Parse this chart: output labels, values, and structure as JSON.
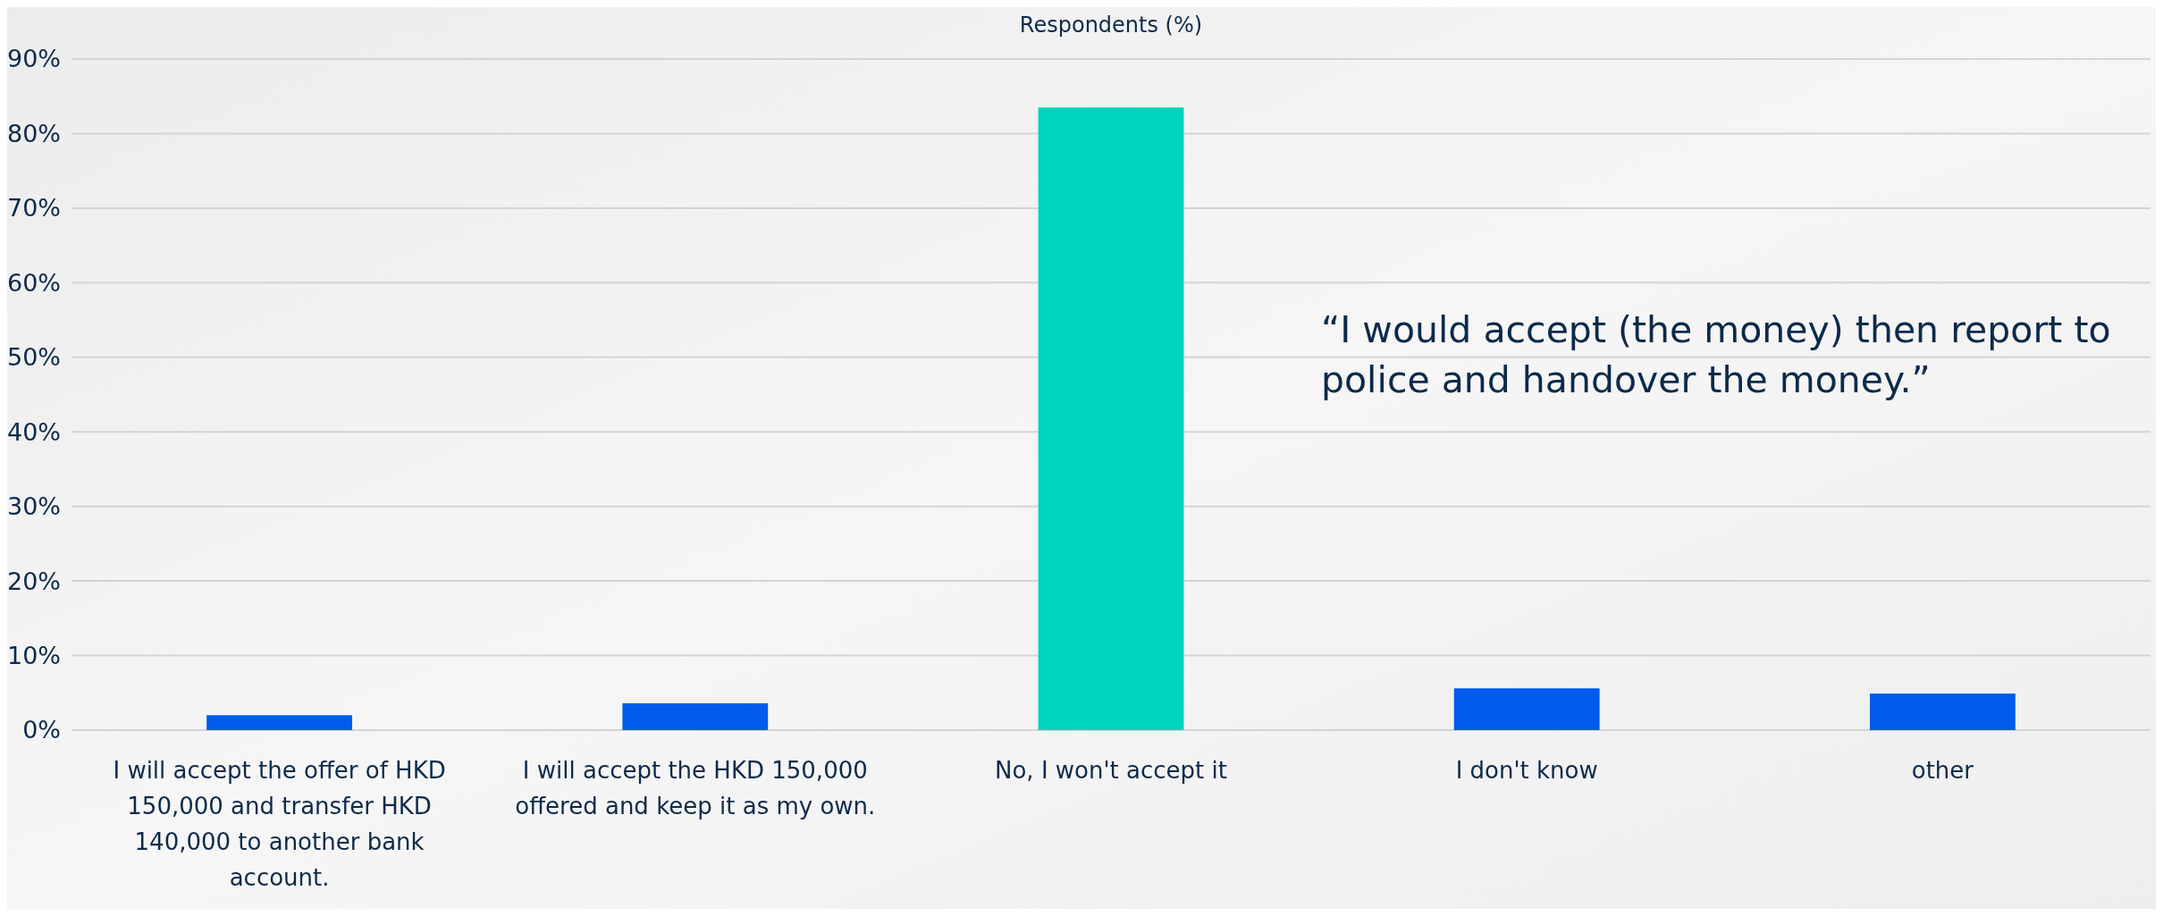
{
  "chart_data": {
    "type": "bar",
    "title": "Respondents (%)",
    "categories": [
      "I will accept the offer of HKD 150,000 and transfer HKD 140,000 to another bank account.",
      "I will accept the HKD 150,000 offered and keep it as my own.",
      "No, I won't accept it",
      "I don't know",
      "other"
    ],
    "values": [
      2.0,
      3.6,
      83.5,
      5.6,
      4.9
    ],
    "colors": [
      "#005aeb",
      "#005aeb",
      "#00d4bc",
      "#005aeb",
      "#005aeb"
    ],
    "ylim": [
      0,
      90
    ],
    "yticks": [
      {
        "value": 0,
        "label": "0%"
      },
      {
        "value": 10,
        "label": "10%"
      },
      {
        "value": 20,
        "label": "20%"
      },
      {
        "value": 30,
        "label": "30%"
      },
      {
        "value": 40,
        "label": "40%"
      },
      {
        "value": 50,
        "label": "50%"
      },
      {
        "value": 60,
        "label": "60%"
      },
      {
        "value": 70,
        "label": "70%"
      },
      {
        "value": 80,
        "label": "80%"
      },
      {
        "value": 90,
        "label": "90%"
      }
    ],
    "grid": "y",
    "annotations": [
      "“I would accept (the money) then report to police and handover the money.”"
    ]
  }
}
